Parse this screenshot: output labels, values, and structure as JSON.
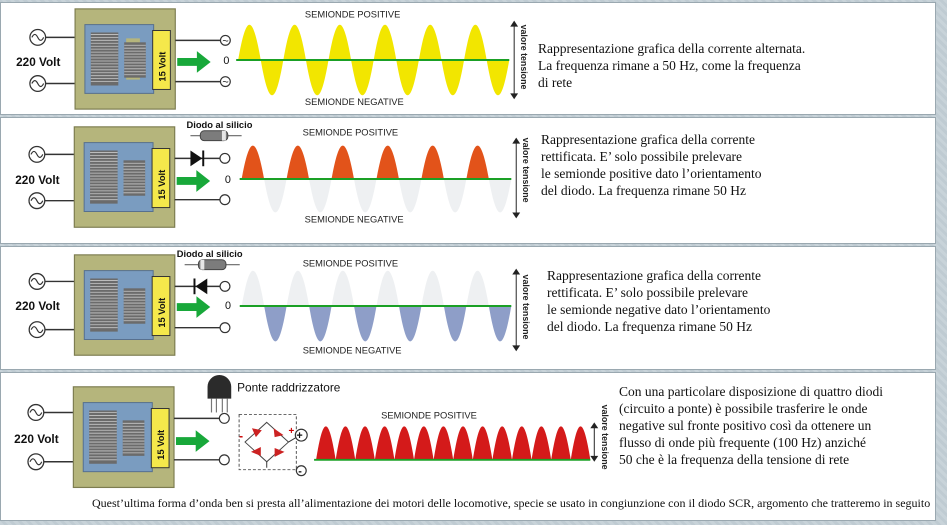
{
  "colors": {
    "ac_wave": "#f2e600",
    "positive_wave": "#e2531a",
    "negative_wave": "#8e9ec8",
    "ghost_wave": "#eef0f2",
    "bridge_wave": "#d41a1a",
    "baseline": "#1aa025",
    "arrow": "#18a83a",
    "transformer_body": "#b5b57c"
  },
  "common": {
    "input_voltage": "220 Volt",
    "output_voltage": "15 Volt",
    "zero": "0",
    "axis_label": "valore tensione",
    "positive_label": "SEMIONDE POSITIVE",
    "negative_label": "SEMIONDE NEGATIVE"
  },
  "panels": [
    {
      "id": "ac",
      "wave": "ac",
      "description": "Rappresentazione grafica della corrente alternata.\nLa frequenza rimane a 50 Hz, come la frequenza\ndi rete"
    },
    {
      "id": "positive",
      "wave": "positive",
      "component_label": "Diodo al silicio",
      "description": "Rappresentazione grafica della corrente\nrettificata. E’ solo possibile prelevare\nle semionde positive dato l’orientamento\ndel diodo. La frequenza rimane 50 Hz"
    },
    {
      "id": "negative",
      "wave": "negative",
      "component_label": "Diodo al silicio",
      "description": "Rappresentazione grafica della corrente\nrettificata. E’ solo possibile prelevare\nle semionde negative dato l’orientamento\ndel diodo. La frequenza rimane 50 Hz"
    },
    {
      "id": "bridge",
      "wave": "full",
      "component_label": "Ponte raddrizzatore",
      "description": "Con una particolare disposizione di quattro diodi\n(circuito a ponte) è possibile trasferire le onde\nnegative sul fronte positivo così da ottenere un\nflusso di onde più frequente (100 Hz) anziché\n50 che è la frequenza della tensione di rete"
    }
  ],
  "footer": "Quest’ultima forma d’onda ben si presta all’alimentazione dei motori delle locomotive, specie se usato in congiunzione con il diodo SCR, argomento che tratteremo in seguito"
}
